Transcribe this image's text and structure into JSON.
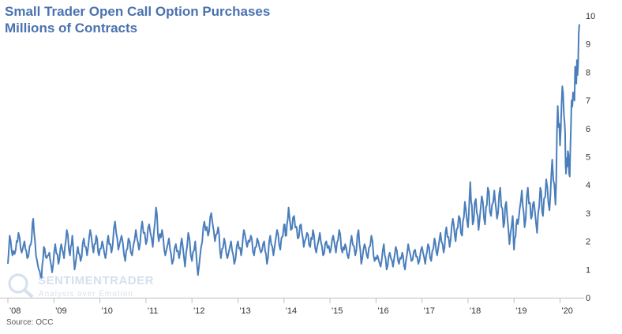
{
  "chart_data": {
    "type": "line",
    "title": "Small Trader Open Call Option Purchases",
    "subtitle": "Millions of Contracts",
    "xlabel": "",
    "ylabel": "",
    "ylim": [
      0,
      10
    ],
    "yticks": [
      "0",
      "1",
      "2",
      "3",
      "4",
      "5",
      "6",
      "7",
      "8",
      "9",
      "10"
    ],
    "xticks": [
      "'08",
      "'09",
      "'10",
      "'11",
      "'12",
      "'13",
      "'14",
      "'15",
      "'16",
      "'17",
      "'18",
      "'19",
      "'20"
    ],
    "xtick_years": [
      2008,
      2009,
      2010,
      2011,
      2012,
      2013,
      2014,
      2015,
      2016,
      2017,
      2018,
      2019,
      2020
    ],
    "xlim": [
      2008,
      2020.42
    ],
    "grid": false,
    "line_color": "#4a7ebb",
    "series": [
      {
        "name": "Small Trader Open Call Option Purchases",
        "anchors": [
          [
            2008.0,
            1.2
          ],
          [
            2008.04,
            2.2
          ],
          [
            2008.1,
            1.5
          ],
          [
            2008.17,
            1.7
          ],
          [
            2008.23,
            2.3
          ],
          [
            2008.3,
            1.6
          ],
          [
            2008.36,
            2.0
          ],
          [
            2008.42,
            1.4
          ],
          [
            2008.5,
            1.9
          ],
          [
            2008.55,
            2.8
          ],
          [
            2008.61,
            1.5
          ],
          [
            2008.67,
            1.0
          ],
          [
            2008.73,
            0.7
          ],
          [
            2008.78,
            1.8
          ],
          [
            2008.84,
            1.4
          ],
          [
            2008.9,
            1.6
          ],
          [
            2008.96,
            0.9
          ],
          [
            2009.03,
            1.9
          ],
          [
            2009.1,
            1.2
          ],
          [
            2009.16,
            1.9
          ],
          [
            2009.22,
            1.4
          ],
          [
            2009.28,
            2.4
          ],
          [
            2009.35,
            1.5
          ],
          [
            2009.4,
            2.2
          ],
          [
            2009.45,
            1.0
          ],
          [
            2009.52,
            1.8
          ],
          [
            2009.58,
            1.3
          ],
          [
            2009.65,
            2.1
          ],
          [
            2009.72,
            1.5
          ],
          [
            2009.79,
            2.4
          ],
          [
            2009.86,
            1.6
          ],
          [
            2009.92,
            2.2
          ],
          [
            2009.98,
            1.5
          ],
          [
            2010.05,
            2.0
          ],
          [
            2010.12,
            1.4
          ],
          [
            2010.18,
            2.2
          ],
          [
            2010.25,
            1.6
          ],
          [
            2010.33,
            2.7
          ],
          [
            2010.4,
            1.7
          ],
          [
            2010.47,
            2.2
          ],
          [
            2010.55,
            1.3
          ],
          [
            2010.62,
            2.1
          ],
          [
            2010.7,
            1.5
          ],
          [
            2010.78,
            2.4
          ],
          [
            2010.85,
            1.7
          ],
          [
            2010.92,
            2.7
          ],
          [
            2011.0,
            1.9
          ],
          [
            2011.07,
            2.6
          ],
          [
            2011.15,
            1.8
          ],
          [
            2011.22,
            3.2
          ],
          [
            2011.28,
            2.0
          ],
          [
            2011.35,
            2.4
          ],
          [
            2011.42,
            1.5
          ],
          [
            2011.5,
            2.1
          ],
          [
            2011.57,
            1.2
          ],
          [
            2011.65,
            1.9
          ],
          [
            2011.72,
            1.4
          ],
          [
            2011.78,
            2.1
          ],
          [
            2011.85,
            1.1
          ],
          [
            2011.92,
            2.3
          ],
          [
            2012.0,
            1.3
          ],
          [
            2012.07,
            2.0
          ],
          [
            2012.13,
            0.8
          ],
          [
            2012.2,
            1.8
          ],
          [
            2012.27,
            2.7
          ],
          [
            2012.35,
            2.2
          ],
          [
            2012.42,
            3.0
          ],
          [
            2012.5,
            2.0
          ],
          [
            2012.57,
            2.5
          ],
          [
            2012.63,
            1.4
          ],
          [
            2012.7,
            2.1
          ],
          [
            2012.77,
            1.4
          ],
          [
            2012.85,
            2.0
          ],
          [
            2012.92,
            1.2
          ],
          [
            2013.0,
            2.0
          ],
          [
            2013.07,
            1.5
          ],
          [
            2013.13,
            2.4
          ],
          [
            2013.2,
            1.8
          ],
          [
            2013.28,
            2.2
          ],
          [
            2013.35,
            1.5
          ],
          [
            2013.42,
            2.1
          ],
          [
            2013.5,
            1.6
          ],
          [
            2013.57,
            2.0
          ],
          [
            2013.63,
            1.2
          ],
          [
            2013.7,
            2.2
          ],
          [
            2013.77,
            1.5
          ],
          [
            2013.85,
            2.4
          ],
          [
            2013.92,
            1.7
          ],
          [
            2014.0,
            2.6
          ],
          [
            2014.05,
            2.2
          ],
          [
            2014.1,
            3.2
          ],
          [
            2014.15,
            2.4
          ],
          [
            2014.22,
            2.9
          ],
          [
            2014.3,
            2.1
          ],
          [
            2014.37,
            2.6
          ],
          [
            2014.43,
            1.8
          ],
          [
            2014.5,
            2.3
          ],
          [
            2014.57,
            1.8
          ],
          [
            2014.63,
            2.4
          ],
          [
            2014.7,
            1.6
          ],
          [
            2014.78,
            2.3
          ],
          [
            2014.85,
            1.5
          ],
          [
            2014.92,
            2.0
          ],
          [
            2015.0,
            1.6
          ],
          [
            2015.07,
            2.2
          ],
          [
            2015.13,
            1.6
          ],
          [
            2015.2,
            2.4
          ],
          [
            2015.27,
            1.6
          ],
          [
            2015.33,
            1.9
          ],
          [
            2015.4,
            1.4
          ],
          [
            2015.47,
            2.2
          ],
          [
            2015.55,
            1.5
          ],
          [
            2015.62,
            2.4
          ],
          [
            2015.68,
            1.2
          ],
          [
            2015.75,
            1.9
          ],
          [
            2015.82,
            1.4
          ],
          [
            2015.9,
            2.2
          ],
          [
            2015.97,
            1.3
          ],
          [
            2016.03,
            1.5
          ],
          [
            2016.1,
            1.1
          ],
          [
            2016.17,
            1.9
          ],
          [
            2016.23,
            1.0
          ],
          [
            2016.3,
            1.6
          ],
          [
            2016.37,
            1.1
          ],
          [
            2016.43,
            1.8
          ],
          [
            2016.5,
            1.2
          ],
          [
            2016.57,
            1.6
          ],
          [
            2016.63,
            1.0
          ],
          [
            2016.7,
            1.9
          ],
          [
            2016.77,
            1.3
          ],
          [
            2016.85,
            1.7
          ],
          [
            2016.92,
            1.2
          ],
          [
            2017.0,
            1.8
          ],
          [
            2017.07,
            1.2
          ],
          [
            2017.13,
            1.9
          ],
          [
            2017.2,
            1.3
          ],
          [
            2017.27,
            2.1
          ],
          [
            2017.33,
            1.5
          ],
          [
            2017.4,
            2.3
          ],
          [
            2017.47,
            1.6
          ],
          [
            2017.53,
            2.5
          ],
          [
            2017.6,
            1.8
          ],
          [
            2017.67,
            2.8
          ],
          [
            2017.73,
            2.0
          ],
          [
            2017.8,
            2.9
          ],
          [
            2017.87,
            2.2
          ],
          [
            2017.93,
            3.4
          ],
          [
            2018.0,
            2.5
          ],
          [
            2018.05,
            4.1
          ],
          [
            2018.1,
            2.6
          ],
          [
            2018.17,
            3.5
          ],
          [
            2018.23,
            2.4
          ],
          [
            2018.3,
            3.6
          ],
          [
            2018.37,
            2.6
          ],
          [
            2018.43,
            3.9
          ],
          [
            2018.5,
            2.9
          ],
          [
            2018.57,
            3.8
          ],
          [
            2018.63,
            2.8
          ],
          [
            2018.7,
            3.9
          ],
          [
            2018.77,
            2.5
          ],
          [
            2018.83,
            3.4
          ],
          [
            2018.9,
            1.9
          ],
          [
            2018.97,
            2.9
          ],
          [
            2019.0,
            1.7
          ],
          [
            2019.05,
            2.6
          ],
          [
            2019.1,
            2.8
          ],
          [
            2019.17,
            3.8
          ],
          [
            2019.23,
            2.5
          ],
          [
            2019.3,
            3.9
          ],
          [
            2019.37,
            2.8
          ],
          [
            2019.43,
            3.4
          ],
          [
            2019.5,
            2.3
          ],
          [
            2019.57,
            3.9
          ],
          [
            2019.63,
            2.9
          ],
          [
            2019.7,
            4.2
          ],
          [
            2019.77,
            3.1
          ],
          [
            2019.83,
            4.9
          ],
          [
            2019.9,
            3.3
          ],
          [
            2019.95,
            6.8
          ],
          [
            2020.0,
            5.4
          ],
          [
            2020.05,
            7.5
          ],
          [
            2020.1,
            6.2
          ],
          [
            2020.13,
            4.4
          ],
          [
            2020.17,
            5.2
          ],
          [
            2020.21,
            4.3
          ],
          [
            2020.25,
            7.0
          ],
          [
            2020.3,
            7.1
          ],
          [
            2020.34,
            8.1
          ],
          [
            2020.38,
            7.9
          ],
          [
            2020.42,
            9.7
          ]
        ]
      }
    ]
  },
  "source": "Source: OCC",
  "watermark": {
    "brand": "SENTIMENTRADER",
    "tagline": "Analysis over Emotion"
  }
}
